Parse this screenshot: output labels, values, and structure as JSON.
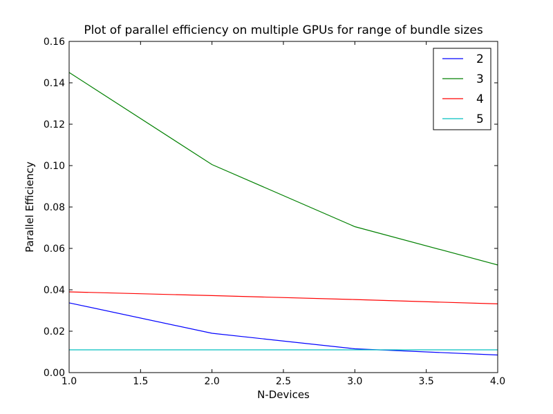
{
  "chart_data": {
    "type": "line",
    "title": "Plot of parallel efficiency on multiple GPUs for range of bundle sizes",
    "xlabel": "N-Devices",
    "ylabel": "Parallel Efficiency",
    "xlim": [
      1.0,
      4.0
    ],
    "ylim": [
      0.0,
      0.16
    ],
    "xticks": [
      "1.0",
      "1.5",
      "2.0",
      "2.5",
      "3.0",
      "3.5",
      "4.0"
    ],
    "yticks": [
      "0.00",
      "0.02",
      "0.04",
      "0.06",
      "0.08",
      "0.10",
      "0.12",
      "0.14",
      "0.16"
    ],
    "grid": false,
    "legend_position": "top-right",
    "x": [
      1,
      2,
      3,
      4
    ],
    "series": [
      {
        "name": "2",
        "color": "#0000ff",
        "values": [
          0.0337,
          0.019,
          0.0115,
          0.0085
        ]
      },
      {
        "name": "3",
        "color": "#008000",
        "values": [
          0.145,
          0.1005,
          0.0705,
          0.052
        ]
      },
      {
        "name": "4",
        "color": "#ff0000",
        "values": [
          0.039,
          0.0372,
          0.0353,
          0.0332
        ]
      },
      {
        "name": "5",
        "color": "#00bfbf",
        "values": [
          0.011,
          0.011,
          0.011,
          0.011
        ]
      }
    ]
  }
}
